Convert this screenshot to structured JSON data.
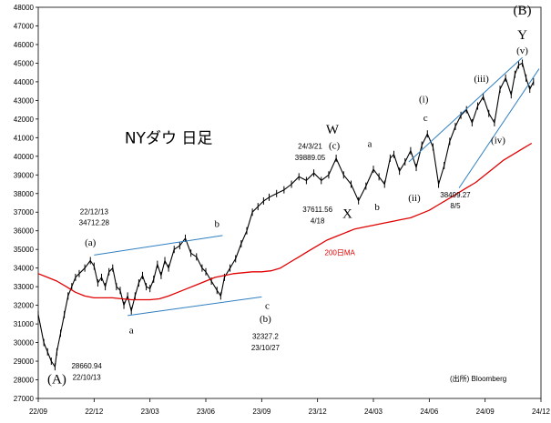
{
  "chart_data": {
    "type": "line",
    "title": "NYダウ 日足",
    "source": "(出所) Bloomberg",
    "ylim": [
      27000,
      48000
    ],
    "y_ticks": [
      27000,
      28000,
      29000,
      30000,
      31000,
      32000,
      33000,
      34000,
      35000,
      36000,
      37000,
      38000,
      39000,
      40000,
      41000,
      42000,
      43000,
      44000,
      45000,
      46000,
      47000,
      48000
    ],
    "x_ticks": [
      "22/09",
      "22/12",
      "23/03",
      "23/06",
      "23/09",
      "23/12",
      "24/03",
      "24/06",
      "24/09",
      "24/12"
    ],
    "x_tick_months": [
      0,
      3,
      6,
      9,
      12,
      15,
      18,
      21,
      24,
      27
    ],
    "series": [
      {
        "name": "",
        "color": "#000000",
        "x": [
          0,
          0.3,
          0.5,
          0.7,
          0.9,
          1.0,
          1.2,
          1.4,
          1.6,
          1.8,
          2.0,
          2.2,
          2.5,
          2.8,
          3.0,
          3.2,
          3.4,
          3.6,
          3.8,
          4.0,
          4.2,
          4.4,
          4.6,
          4.8,
          5.0,
          5.2,
          5.4,
          5.6,
          5.8,
          6.0,
          6.2,
          6.4,
          6.6,
          6.8,
          7.0,
          7.3,
          7.6,
          7.9,
          8.2,
          8.5,
          8.8,
          9.0,
          9.3,
          9.6,
          9.8,
          10.0,
          10.3,
          10.6,
          10.9,
          11.2,
          11.5,
          11.8,
          12.1,
          12.4,
          12.8,
          13.2,
          13.6,
          14.0,
          14.4,
          14.8,
          15.2,
          15.6,
          16.0,
          16.4,
          16.8,
          17.2,
          17.6,
          18.0,
          18.3,
          18.6,
          18.9,
          19.1,
          19.4,
          19.7,
          20.0,
          20.3,
          20.6,
          20.9,
          21.2,
          21.5,
          21.8,
          22.1,
          22.4,
          22.7,
          23.0,
          23.3,
          23.6,
          23.9,
          24.2,
          24.5,
          24.8,
          25.1,
          25.4,
          25.6,
          25.8,
          26.0,
          26.2,
          26.4,
          26.6
        ],
        "values": [
          31500,
          30000,
          29500,
          29000,
          28700,
          29500,
          30500,
          31500,
          32500,
          33000,
          33500,
          33700,
          34000,
          34400,
          34100,
          33200,
          33500,
          33000,
          33800,
          34000,
          33000,
          32800,
          32000,
          32500,
          31700,
          32500,
          33200,
          33600,
          33000,
          32900,
          33400,
          34200,
          33600,
          34400,
          34000,
          35000,
          35200,
          35600,
          34800,
          34600,
          34000,
          33800,
          33300,
          32800,
          32500,
          33500,
          34000,
          34500,
          35300,
          36000,
          37000,
          37300,
          37600,
          37800,
          38000,
          38200,
          38500,
          38900,
          38700,
          39100,
          38700,
          39000,
          39889,
          39000,
          38500,
          37612,
          38400,
          39300,
          38900,
          38500,
          39900,
          40100,
          39200,
          39700,
          40300,
          39400,
          40600,
          41200,
          40500,
          38499,
          39500,
          40800,
          41600,
          42200,
          42500,
          41800,
          42700,
          43200,
          42300,
          41800,
          43600,
          44200,
          43300,
          44400,
          44900,
          45000,
          44200,
          43600,
          44000
        ]
      },
      {
        "name": "200日MA",
        "color": "#e10000",
        "x": [
          0,
          0.5,
          1,
          1.5,
          2,
          2.5,
          3,
          3.5,
          4,
          4.5,
          5,
          5.5,
          6,
          6.5,
          7,
          7.5,
          8,
          8.5,
          9,
          9.5,
          10,
          10.5,
          11,
          11.5,
          12,
          12.5,
          13,
          13.5,
          14,
          14.5,
          15,
          15.5,
          16,
          16.5,
          17,
          17.5,
          18,
          18.5,
          19,
          19.5,
          20,
          20.5,
          21,
          21.5,
          22,
          22.5,
          23,
          23.5,
          24,
          24.5,
          25,
          25.5,
          26,
          26.5
        ],
        "values": [
          33700,
          33500,
          33300,
          33000,
          32700,
          32500,
          32400,
          32400,
          32400,
          32350,
          32300,
          32300,
          32300,
          32350,
          32500,
          32700,
          32900,
          33100,
          33300,
          33500,
          33600,
          33700,
          33750,
          33800,
          33800,
          33850,
          34000,
          34300,
          34600,
          34900,
          35200,
          35500,
          35700,
          35900,
          36100,
          36200,
          36300,
          36400,
          36500,
          36600,
          36700,
          36900,
          37100,
          37400,
          37700,
          38000,
          38300,
          38600,
          39000,
          39400,
          39800,
          40100,
          40400,
          40700
        ]
      }
    ],
    "trendlines": [
      {
        "color": "#2f7fc1",
        "x": [
          3.0,
          9.9
        ],
        "values": [
          34700,
          35750
        ]
      },
      {
        "color": "#2f7fc1",
        "x": [
          4.8,
          12.0
        ],
        "values": [
          31450,
          32450
        ]
      },
      {
        "color": "#2f7fc1",
        "x": [
          19.9,
          26.0
        ],
        "values": [
          39700,
          45300
        ]
      },
      {
        "color": "#2f7fc1",
        "x": [
          22.6,
          26.9
        ],
        "values": [
          38300,
          44700
        ]
      }
    ],
    "annotations": [
      {
        "text": "(A)",
        "x": 1.0,
        "y": 27800,
        "size": "big"
      },
      {
        "text": "28660.94",
        "x": 2.6,
        "y": 28600,
        "size": "num"
      },
      {
        "text": "22/10/13",
        "x": 2.6,
        "y": 28000,
        "size": "num"
      },
      {
        "text": "22/12/13",
        "x": 3.0,
        "y": 36900,
        "size": "num"
      },
      {
        "text": "34712.28",
        "x": 3.0,
        "y": 36300,
        "size": "num"
      },
      {
        "text": "(a)",
        "x": 2.8,
        "y": 35200,
        "size": "lbl"
      },
      {
        "text": "a",
        "x": 5.0,
        "y": 30500,
        "size": "lbl"
      },
      {
        "text": "b",
        "x": 9.6,
        "y": 36200,
        "size": "lbl"
      },
      {
        "text": "(b)",
        "x": 12.2,
        "y": 31100,
        "size": "lbl"
      },
      {
        "text": "c",
        "x": 12.3,
        "y": 31800,
        "size": "lbl"
      },
      {
        "text": "32327.2",
        "x": 12.2,
        "y": 30200,
        "size": "num"
      },
      {
        "text": "23/10/27",
        "x": 12.2,
        "y": 29600,
        "size": "num"
      },
      {
        "text": "NYダウ 日足",
        "x": 7.0,
        "y": 40700,
        "size": "title"
      },
      {
        "text": "W",
        "x": 15.8,
        "y": 41200,
        "size": "big"
      },
      {
        "text": "(c)",
        "x": 15.9,
        "y": 40400,
        "size": "lbl"
      },
      {
        "text": "24/3/21",
        "x": 14.6,
        "y": 40400,
        "size": "num"
      },
      {
        "text": "39889.05",
        "x": 14.6,
        "y": 39800,
        "size": "num"
      },
      {
        "text": "X",
        "x": 16.6,
        "y": 36700,
        "size": "big"
      },
      {
        "text": "37611.56",
        "x": 15.0,
        "y": 37000,
        "size": "num"
      },
      {
        "text": "4/18",
        "x": 15.0,
        "y": 36400,
        "size": "num"
      },
      {
        "text": "200日MA",
        "x": 16.2,
        "y": 34700,
        "size": "ma"
      },
      {
        "text": "a",
        "x": 17.8,
        "y": 40500,
        "size": "lbl"
      },
      {
        "text": "b",
        "x": 18.2,
        "y": 37100,
        "size": "lbl"
      },
      {
        "text": "c",
        "x": 20.8,
        "y": 41900,
        "size": "lbl"
      },
      {
        "text": "(i)",
        "x": 20.7,
        "y": 42900,
        "size": "lbl"
      },
      {
        "text": "(ii)",
        "x": 20.2,
        "y": 37600,
        "size": "lbl"
      },
      {
        "text": "38499.27",
        "x": 22.4,
        "y": 37800,
        "size": "num"
      },
      {
        "text": "8/5",
        "x": 22.4,
        "y": 37200,
        "size": "num"
      },
      {
        "text": "(iii)",
        "x": 23.8,
        "y": 44000,
        "size": "lbl"
      },
      {
        "text": "(iv)",
        "x": 24.7,
        "y": 40700,
        "size": "lbl"
      },
      {
        "text": "(v)",
        "x": 26.0,
        "y": 45500,
        "size": "lbl"
      },
      {
        "text": "Y",
        "x": 26.0,
        "y": 46300,
        "size": "big"
      },
      {
        "text": "(B)",
        "x": 26.0,
        "y": 47600,
        "size": "big"
      }
    ]
  }
}
